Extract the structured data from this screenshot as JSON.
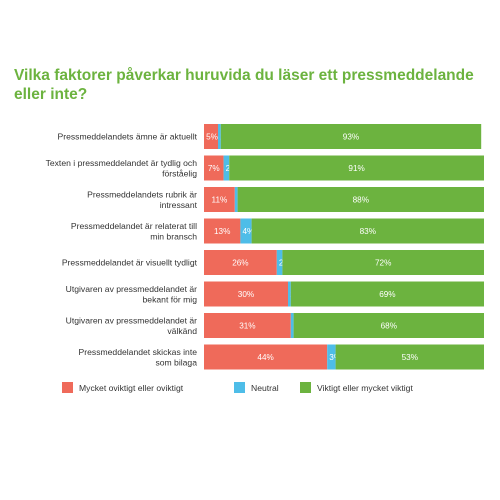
{
  "chart_data": {
    "type": "bar",
    "orientation": "horizontal",
    "stacked": true,
    "title": "Vilka faktorer påverkar huruvida du läser ett pressmeddelande eller inte?",
    "categories": [
      "Pressmeddelandets ämne är aktuellt",
      "Texten i pressmeddelandet är tydlig och förståelig",
      "Pressmeddelandets rubrik är intressant",
      "Pressmeddelandet är relaterat till min bransch",
      "Pressmeddelandet är visuellt tydligt",
      "Utgivaren av pressmeddelandet är bekant för mig",
      "Utgivaren av pressmeddelandet är välkänd",
      "Pressmeddelandet skickas inte som bilaga"
    ],
    "category_lines": [
      [
        "Pressmeddelandets ämne är aktuellt"
      ],
      [
        "Texten i pressmeddelandet är tydlig och",
        "förståelig"
      ],
      [
        "Pressmeddelandets rubrik är",
        "intressant"
      ],
      [
        "Pressmeddelandet är relaterat till",
        "min bransch"
      ],
      [
        "Pressmeddelandet är visuellt tydligt"
      ],
      [
        "Utgivaren av pressmeddelandet är",
        "bekant för mig"
      ],
      [
        "Utgivaren av pressmeddelandet är",
        "välkänd"
      ],
      [
        "Pressmeddelandet skickas inte",
        "som bilaga"
      ]
    ],
    "series": [
      {
        "name": "Mycket oviktigt eller oviktigt",
        "color": "#ef6a5a",
        "values": [
          5,
          7,
          11,
          13,
          26,
          30,
          31,
          44
        ],
        "labels": [
          "5%",
          "7%",
          "11%",
          "13%",
          "26%",
          "30%",
          "31%",
          "44%"
        ]
      },
      {
        "name": "Neutral",
        "color": "#4ebde8",
        "values": [
          1,
          2,
          1,
          4,
          2,
          1,
          1,
          3
        ],
        "labels": [
          "1%",
          "2%",
          "1%",
          "4%",
          "2%",
          "1%",
          "1%",
          "3%"
        ]
      },
      {
        "name": "Viktigt eller mycket viktigt",
        "color": "#6cb33f",
        "values": [
          93,
          91,
          88,
          83,
          72,
          69,
          68,
          53
        ],
        "labels": [
          "93%",
          "91%",
          "88%",
          "83%",
          "72%",
          "69%",
          "68%",
          "53%"
        ]
      }
    ],
    "xlim": [
      0,
      100
    ],
    "grid": false,
    "legend_position": "bottom"
  }
}
